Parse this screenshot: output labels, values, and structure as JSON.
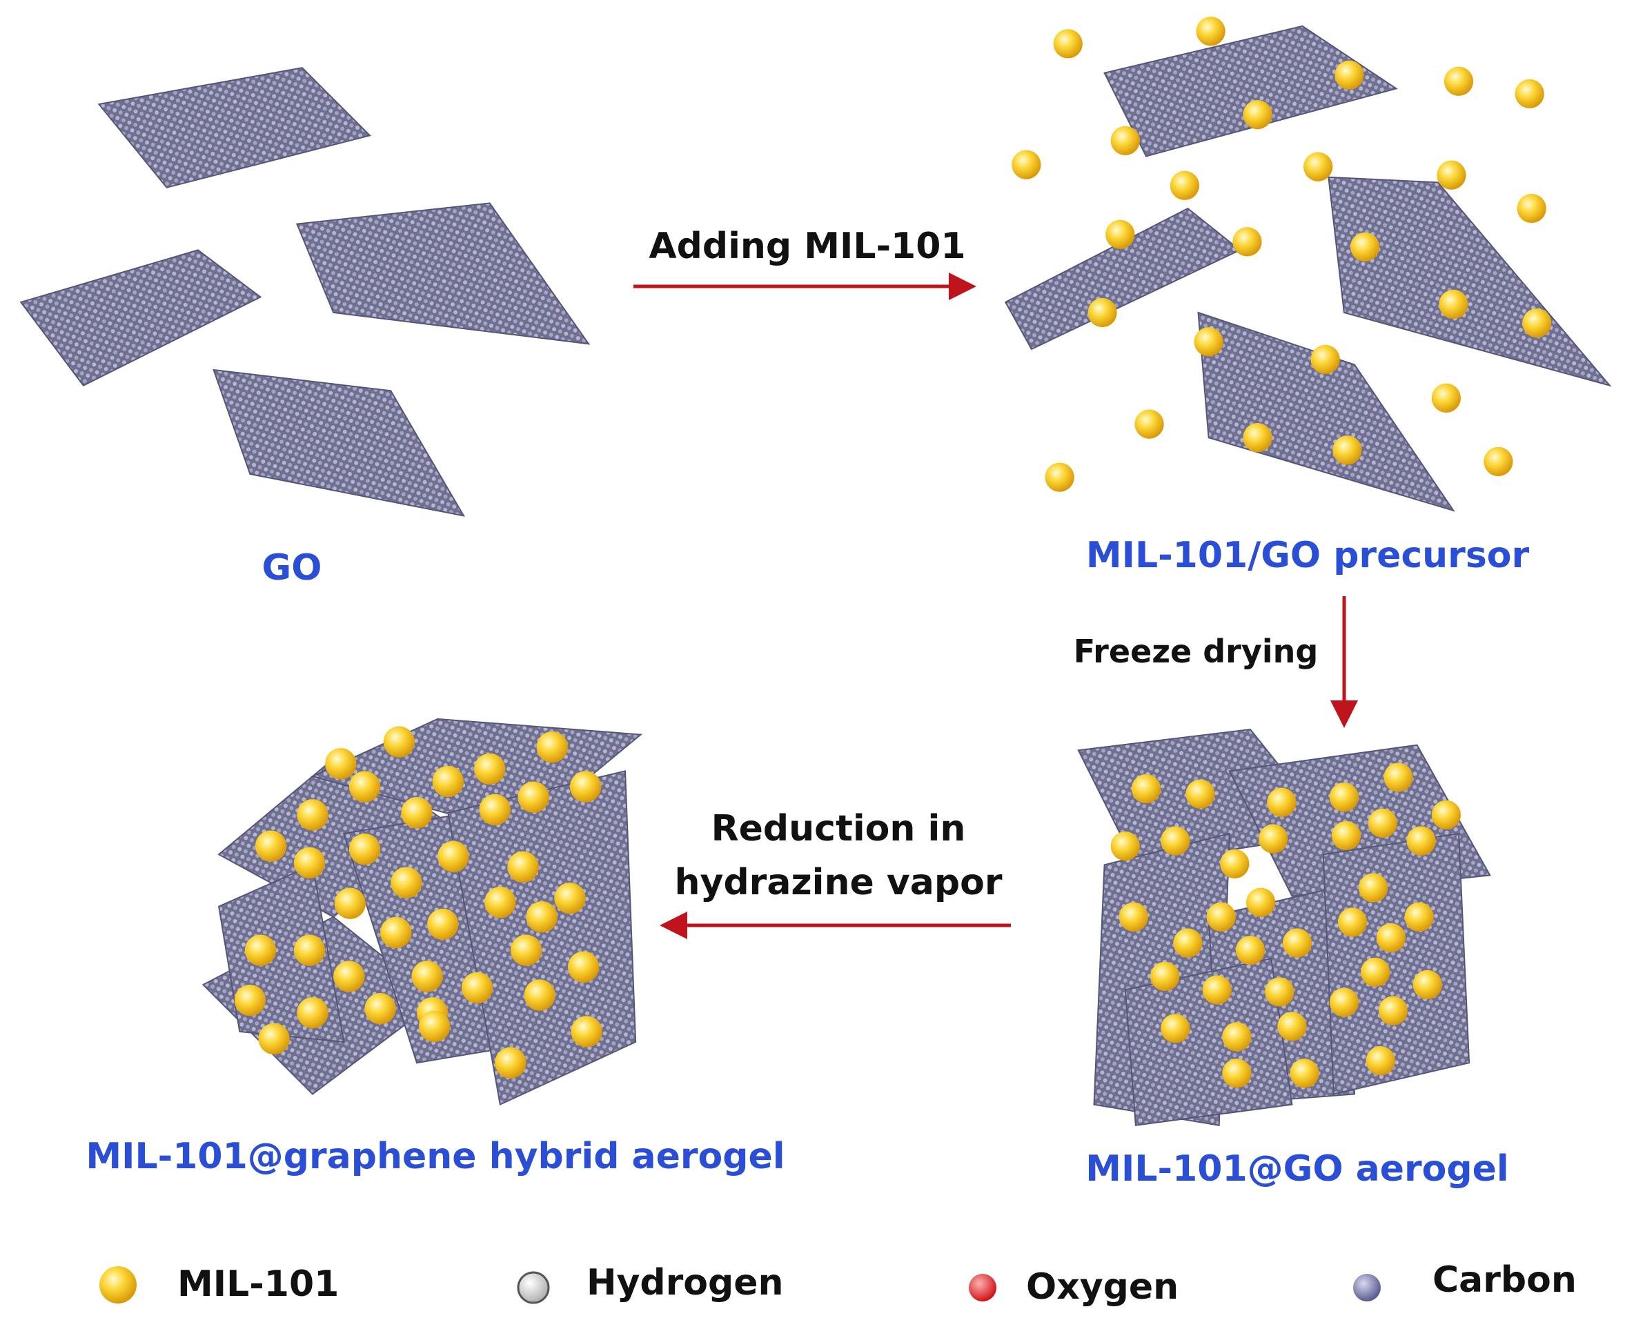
{
  "stages": [
    {
      "label": "GO"
    },
    {
      "label": "MIL-101/GO precursor"
    },
    {
      "label": "MIL-101@GO aerogel"
    },
    {
      "label": "MIL-101@graphene hybrid aerogel"
    }
  ],
  "steps": [
    {
      "lines": [
        "Adding MIL-101"
      ]
    },
    {
      "lines": [
        "Freeze drying"
      ]
    },
    {
      "lines": [
        "Reduction in",
        "hydrazine vapor"
      ]
    }
  ],
  "legend": [
    {
      "label": "MIL-101"
    },
    {
      "label": "Hydrogen"
    },
    {
      "label": "Oxygen"
    },
    {
      "label": "Carbon"
    }
  ]
}
